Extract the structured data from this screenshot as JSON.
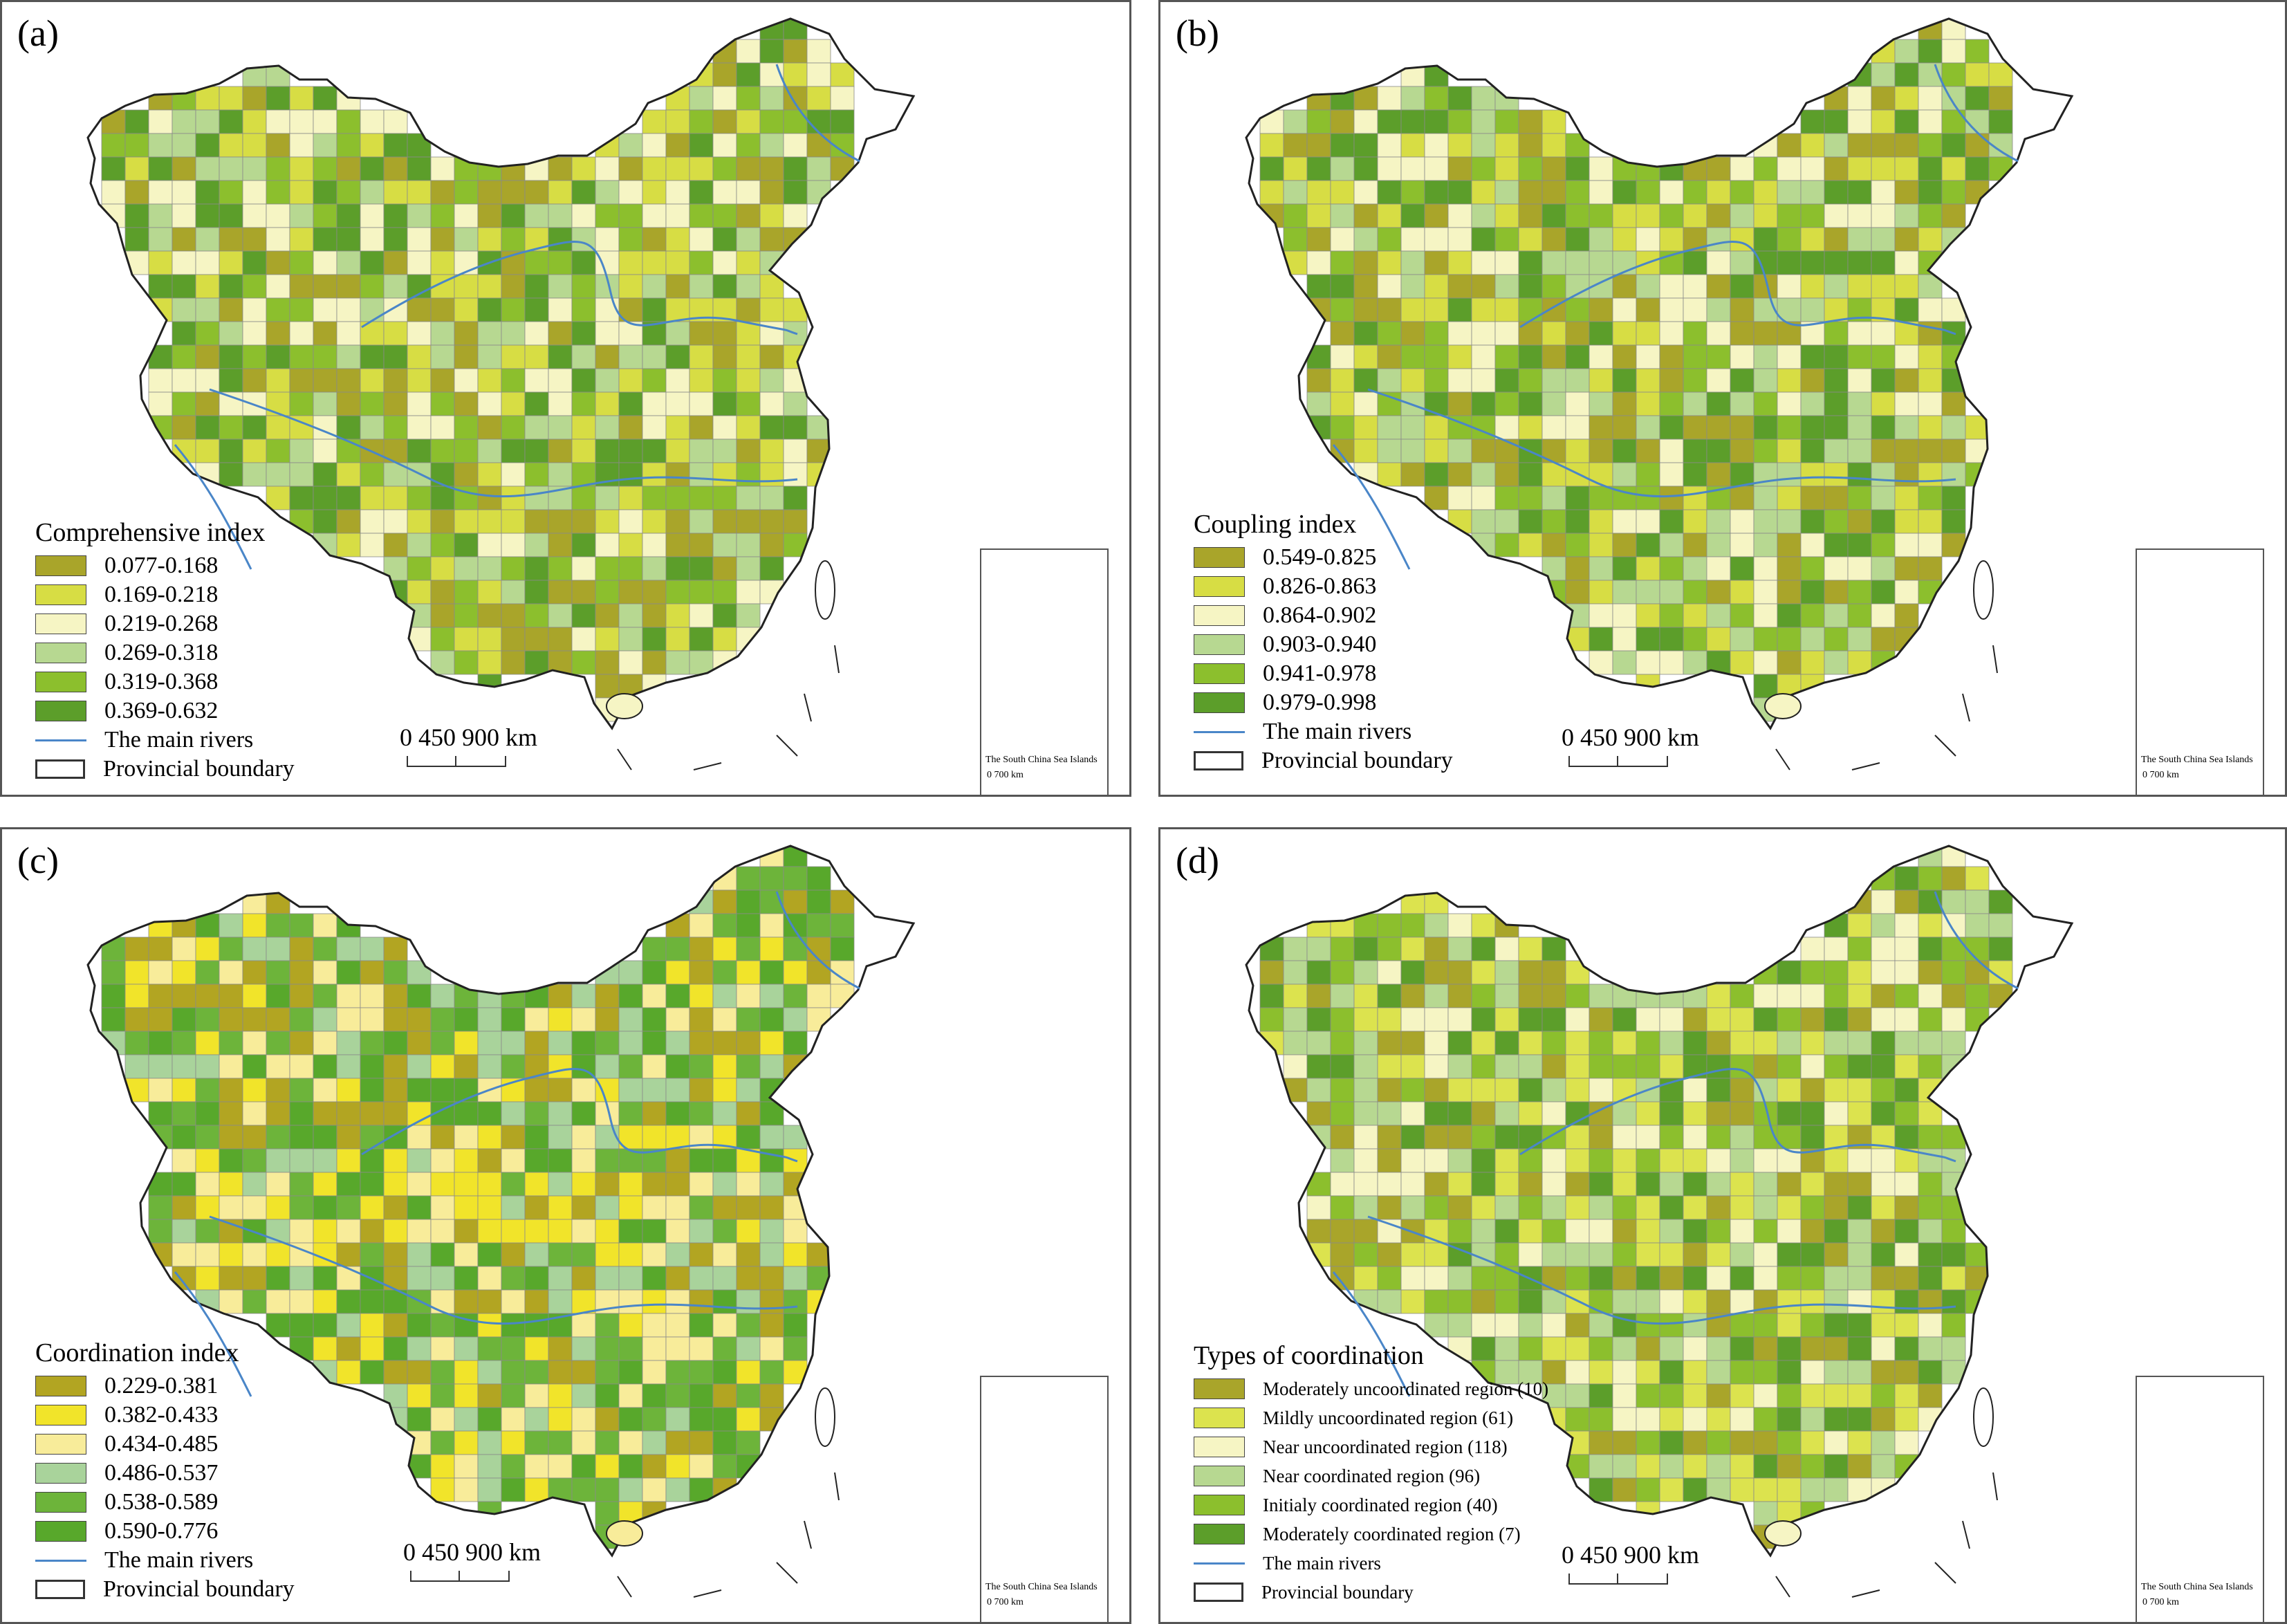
{
  "panels": [
    {
      "id": "a",
      "label": "(a)",
      "legend_title": "Comprehensive index",
      "classes": [
        {
          "label": "0.077-0.168",
          "color": "#a9a52a"
        },
        {
          "label": "0.169-0.218",
          "color": "#d7dd44"
        },
        {
          "label": "0.219-0.268",
          "color": "#f6f5c4"
        },
        {
          "label": "0.269-0.318",
          "color": "#b7d891"
        },
        {
          "label": "0.319-0.368",
          "color": "#8cbf2d"
        },
        {
          "label": "0.369-0.632",
          "color": "#5c9e2a"
        }
      ]
    },
    {
      "id": "b",
      "label": "(b)",
      "legend_title": "Coupling index",
      "classes": [
        {
          "label": "0.549-0.825",
          "color": "#a9a52a"
        },
        {
          "label": "0.826-0.863",
          "color": "#d7dd44"
        },
        {
          "label": "0.864-0.902",
          "color": "#f6f5c4"
        },
        {
          "label": "0.903-0.940",
          "color": "#b7d891"
        },
        {
          "label": "0.941-0.978",
          "color": "#8cbf2d"
        },
        {
          "label": "0.979-0.998",
          "color": "#5c9e2a"
        }
      ]
    },
    {
      "id": "c",
      "label": "(c)",
      "legend_title": "Coordination index",
      "classes": [
        {
          "label": "0.229-0.381",
          "color": "#b2a522"
        },
        {
          "label": "0.382-0.433",
          "color": "#f1e42a"
        },
        {
          "label": "0.434-0.485",
          "color": "#f8ec9a"
        },
        {
          "label": "0.486-0.537",
          "color": "#a9d39b"
        },
        {
          "label": "0.538-0.589",
          "color": "#6db43a"
        },
        {
          "label": "0.590-0.776",
          "color": "#58a82b"
        }
      ]
    },
    {
      "id": "d",
      "label": "(d)",
      "legend_title": "Types of coordination",
      "classes": [
        {
          "label": "Moderately uncoordinated region (10)",
          "color": "#a9a52a"
        },
        {
          "label": "Mildly uncoordinated region (61)",
          "color": "#dce34e"
        },
        {
          "label": "Near uncoordinated region (118)",
          "color": "#f6f5c4"
        },
        {
          "label": "Near coordinated region (96)",
          "color": "#b7d891"
        },
        {
          "label": "Initialy coordinated region (40)",
          "color": "#8cbf2d"
        },
        {
          "label": "Moderately coordinated region (7)",
          "color": "#5c9e2a"
        }
      ]
    }
  ],
  "common": {
    "rivers_label": "The main rivers",
    "boundary_label": "Provincial boundary",
    "scale_text": "0 450 900 km",
    "inset_caption": "The South China Sea Islands",
    "inset_scale": "0        700 km",
    "river_color": "#4a86c8"
  }
}
